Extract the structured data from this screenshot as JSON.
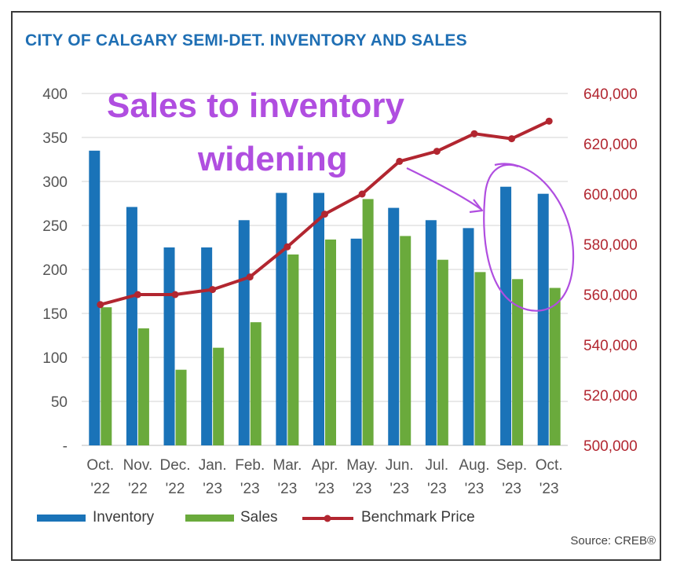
{
  "title": "CITY OF CALGARY SEMI-DET. INVENTORY AND SALES",
  "source": "Source: CREB®",
  "annotation": {
    "line1": "Sales to inventory",
    "line2": "widening"
  },
  "colors": {
    "title": "#1f6fb4",
    "inventory": "#1a73b8",
    "sales": "#6aaa3c",
    "benchmark": "#b22630",
    "annotation": "#b04ee0"
  },
  "chart_data": {
    "type": "bar",
    "title": "CITY OF CALGARY SEMI-DET. INVENTORY AND SALES",
    "categories": [
      [
        "Oct.",
        "'22"
      ],
      [
        "Nov.",
        "'22"
      ],
      [
        "Dec.",
        "'22"
      ],
      [
        "Jan.",
        "'23"
      ],
      [
        "Feb.",
        "'23"
      ],
      [
        "Mar.",
        "'23"
      ],
      [
        "Apr.",
        "'23"
      ],
      [
        "May.",
        "'23"
      ],
      [
        "Jun.",
        "'23"
      ],
      [
        "Jul.",
        "'23"
      ],
      [
        "Aug.",
        "'23"
      ],
      [
        "Sep.",
        "'23"
      ],
      [
        "Oct.",
        "'23"
      ]
    ],
    "y_left": {
      "lim": [
        0,
        400
      ],
      "ticks": [
        "-",
        "50",
        "100",
        "150",
        "200",
        "250",
        "300",
        "350",
        "400"
      ]
    },
    "y_right": {
      "lim": [
        500000,
        640000
      ],
      "ticks": [
        "500,000",
        "520,000",
        "540,000",
        "560,000",
        "580,000",
        "600,000",
        "620,000",
        "640,000"
      ]
    },
    "grid": true,
    "legend": "bottom",
    "series": [
      {
        "name": "Inventory",
        "type": "bar",
        "axis": "left",
        "values": [
          335,
          271,
          225,
          225,
          256,
          287,
          287,
          235,
          270,
          256,
          247,
          294,
          286
        ]
      },
      {
        "name": "Sales",
        "type": "bar",
        "axis": "left",
        "values": [
          157,
          133,
          86,
          111,
          140,
          217,
          234,
          280,
          238,
          211,
          197,
          189,
          179
        ]
      },
      {
        "name": "Benchmark Price",
        "type": "line",
        "axis": "right",
        "values": [
          556000,
          560000,
          560000,
          562000,
          567000,
          579000,
          592000,
          600000,
          613000,
          617000,
          624000,
          622000,
          629000
        ]
      }
    ]
  }
}
